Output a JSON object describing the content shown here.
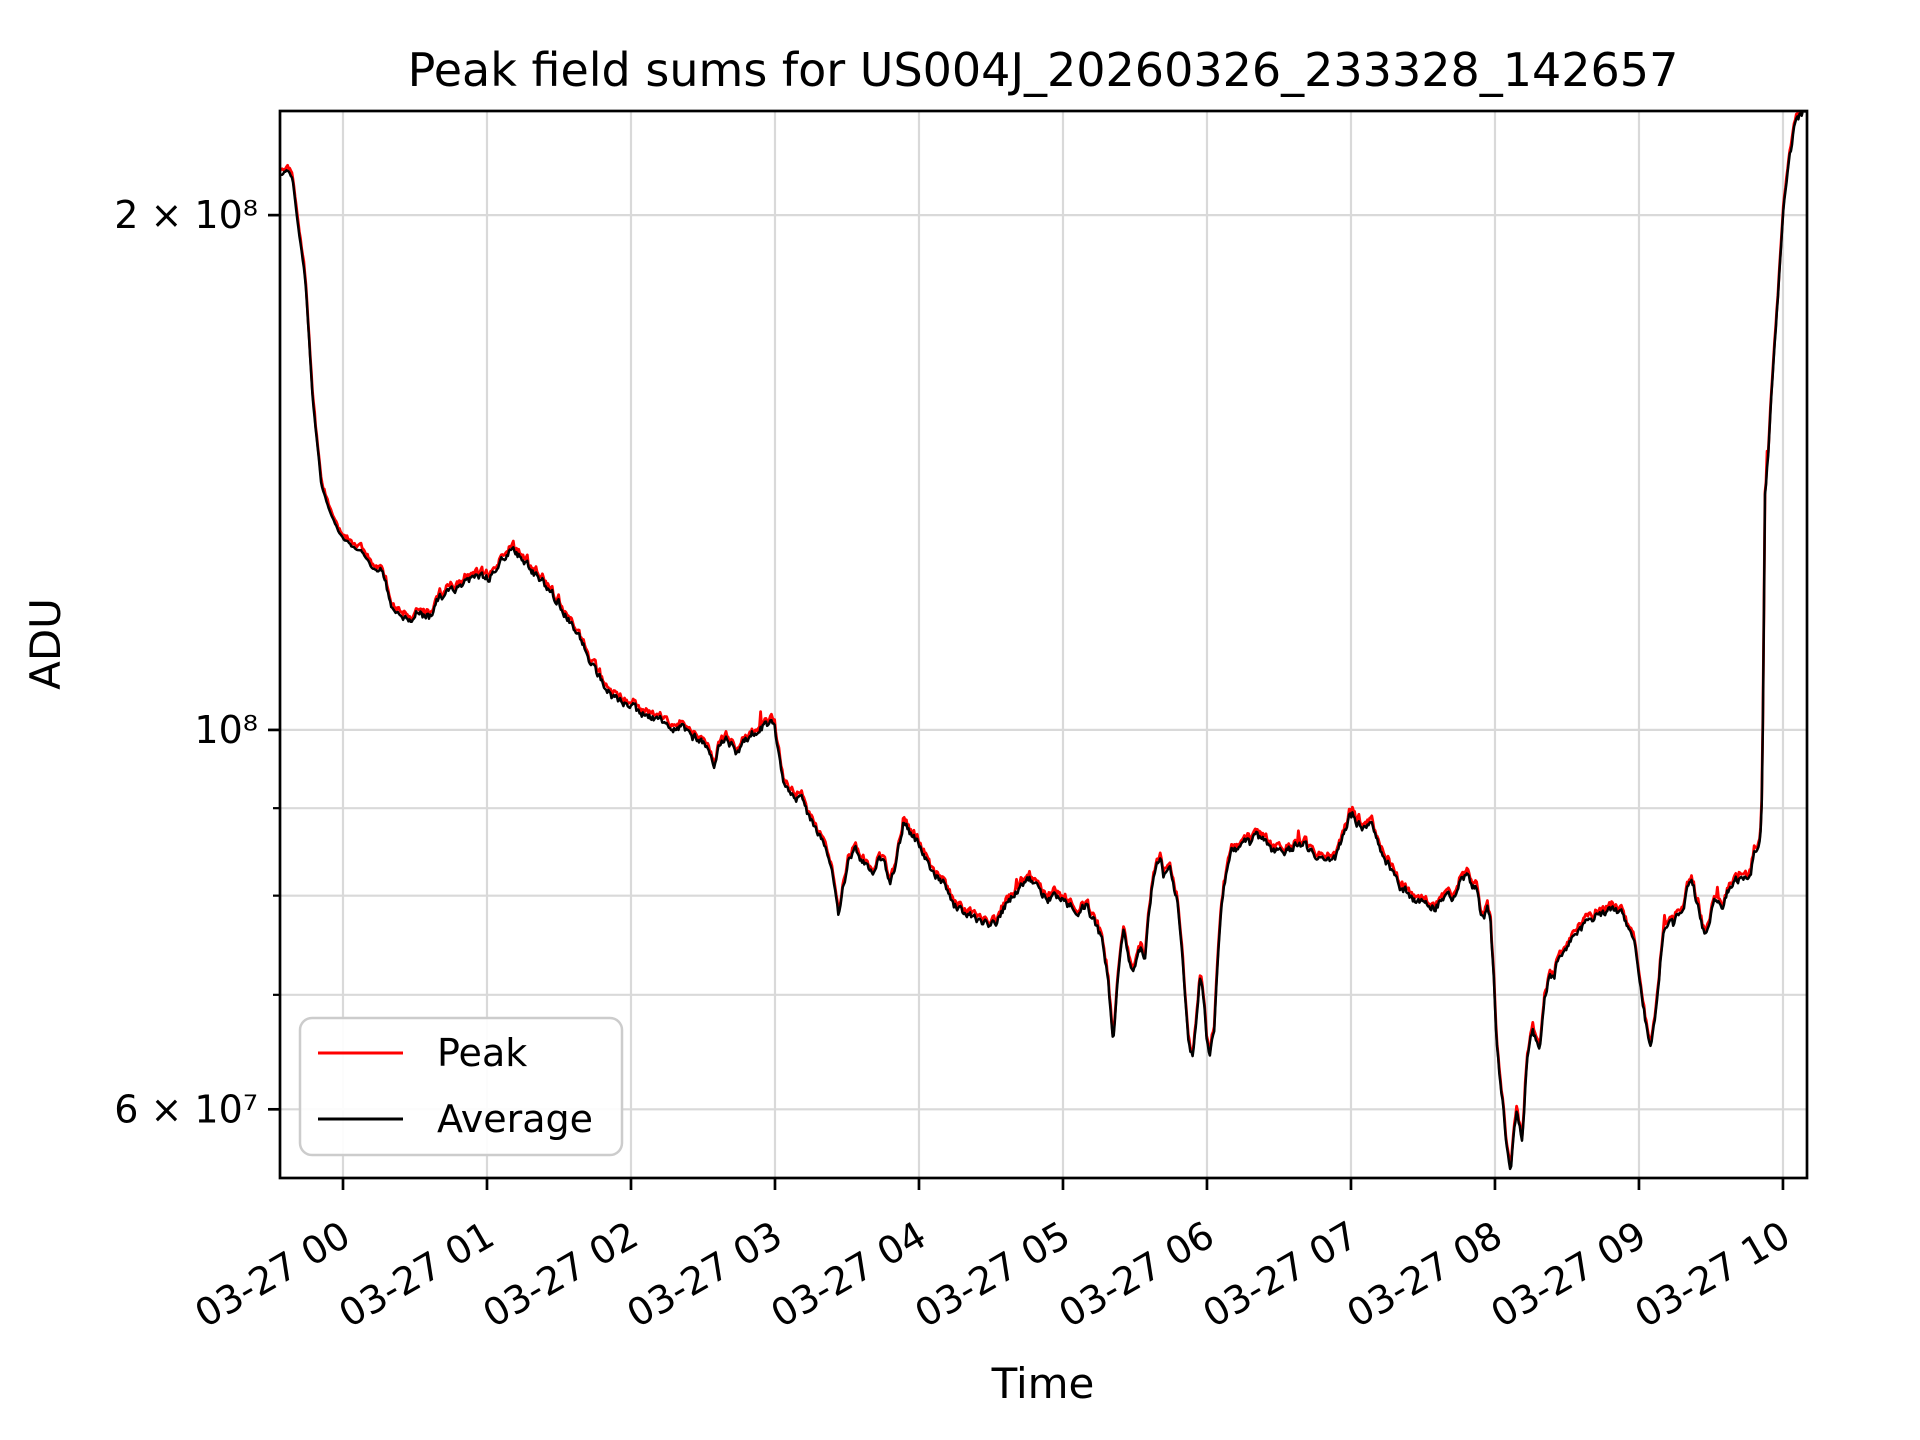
{
  "figure": {
    "title": "Peak field sums for US004J_20260326_233328_142657",
    "xlabel": "Time",
    "ylabel": "ADU",
    "background": "#ffffff"
  },
  "axes": {
    "xlim_hours": [
      -0.4375,
      10.167
    ],
    "ylim": [
      54700000,
      230100000
    ],
    "x_ticks": [
      {
        "hour": 0,
        "label": "03-27 00"
      },
      {
        "hour": 1,
        "label": "03-27 01"
      },
      {
        "hour": 2,
        "label": "03-27 02"
      },
      {
        "hour": 3,
        "label": "03-27 03"
      },
      {
        "hour": 4,
        "label": "03-27 04"
      },
      {
        "hour": 5,
        "label": "03-27 05"
      },
      {
        "hour": 6,
        "label": "03-27 06"
      },
      {
        "hour": 7,
        "label": "03-27 07"
      },
      {
        "hour": 8,
        "label": "03-27 08"
      },
      {
        "hour": 9,
        "label": "03-27 09"
      },
      {
        "hour": 10,
        "label": "03-27 10"
      }
    ],
    "y_ticks": [
      {
        "value": 200000000,
        "label": "2 × 10⁸"
      },
      {
        "value": 100000000,
        "label": "10⁸"
      },
      {
        "value": 60000000,
        "label": "6 × 10⁷"
      }
    ],
    "y_minor_ticks": [
      90000000,
      80000000,
      70000000
    ],
    "grid_color": "#d9d9d9",
    "spine_color": "#000000"
  },
  "legend": {
    "entries": [
      {
        "label": "Peak",
        "color": "#ff0000"
      },
      {
        "label": "Average",
        "color": "#000000"
      }
    ]
  },
  "chart_data": {
    "type": "line",
    "title": "Peak field sums for US004J_20260326_233328_142657",
    "xlabel": "Time",
    "ylabel": "ADU",
    "x_unit": "hours after 2026-03-27 00:00 (negative = before midnight)",
    "value_unit": "millions of ADU",
    "y_scale": "log",
    "xlim": [
      -0.4375,
      10.167
    ],
    "ylim_millions": [
      54.7,
      230.1
    ],
    "grid": true,
    "legend_position": "lower left",
    "series": [
      {
        "name": "Peak",
        "color": "#ff0000",
        "note": "noisy upper envelope, approx 0.3-1.5% above Average"
      },
      {
        "name": "Average",
        "color": "#000000",
        "note": "waypoints below; both lines nearly overlap"
      }
    ],
    "average_points": [
      [
        -0.44,
        211
      ],
      [
        -0.38,
        212.5
      ],
      [
        -0.35,
        210
      ],
      [
        -0.32,
        199.7
      ],
      [
        -0.26,
        183
      ],
      [
        -0.21,
        156
      ],
      [
        -0.15,
        139
      ],
      [
        -0.09,
        134
      ],
      [
        -0.02,
        130
      ],
      [
        0.06,
        128
      ],
      [
        0.14,
        127
      ],
      [
        0.2,
        124.4
      ],
      [
        0.28,
        123.5
      ],
      [
        0.34,
        117.5
      ],
      [
        0.4,
        116
      ],
      [
        0.47,
        116
      ],
      [
        0.51,
        117.5
      ],
      [
        0.55,
        116.6
      ],
      [
        0.6,
        116.5
      ],
      [
        0.67,
        119.8
      ],
      [
        0.73,
        120.2
      ],
      [
        0.79,
        121.2
      ],
      [
        0.85,
        122
      ],
      [
        0.9,
        122.4
      ],
      [
        0.97,
        123
      ],
      [
        1.02,
        122.6
      ],
      [
        1.09,
        126
      ],
      [
        1.17,
        127.2
      ],
      [
        1.23,
        126.4
      ],
      [
        1.31,
        124
      ],
      [
        1.4,
        121.6
      ],
      [
        1.49,
        119
      ],
      [
        1.56,
        116.3
      ],
      [
        1.63,
        114
      ],
      [
        1.72,
        109.6
      ],
      [
        1.79,
        107
      ],
      [
        1.87,
        104.4
      ],
      [
        1.92,
        104
      ],
      [
        2.01,
        103
      ],
      [
        2.1,
        102
      ],
      [
        2.19,
        101.4
      ],
      [
        2.26,
        101
      ],
      [
        2.29,
        99.6
      ],
      [
        2.34,
        100.5
      ],
      [
        2.41,
        99.2
      ],
      [
        2.48,
        98.5
      ],
      [
        2.53,
        97.4
      ],
      [
        2.58,
        95.3
      ],
      [
        2.61,
        98.1
      ],
      [
        2.65,
        98.9
      ],
      [
        2.69,
        98
      ],
      [
        2.74,
        97
      ],
      [
        2.79,
        98.4
      ],
      [
        2.84,
        99.5
      ],
      [
        2.91,
        100.4
      ],
      [
        2.97,
        100.8
      ],
      [
        3.0,
        99.9
      ],
      [
        3.03,
        96
      ],
      [
        3.06,
        92.7
      ],
      [
        3.1,
        91.8
      ],
      [
        3.15,
        90.9
      ],
      [
        3.19,
        91.4
      ],
      [
        3.23,
        89.2
      ],
      [
        3.28,
        87.4
      ],
      [
        3.33,
        85.9
      ],
      [
        3.37,
        84.5
      ],
      [
        3.41,
        81.1
      ],
      [
        3.44,
        77.7
      ],
      [
        3.47,
        80.6
      ],
      [
        3.51,
        83.7
      ],
      [
        3.56,
        85.3
      ],
      [
        3.6,
        83.7
      ],
      [
        3.65,
        83.0
      ],
      [
        3.68,
        82.4
      ],
      [
        3.72,
        84.3
      ],
      [
        3.76,
        83.6
      ],
      [
        3.8,
        81.7
      ],
      [
        3.83,
        82.8
      ],
      [
        3.89,
        88.1
      ],
      [
        3.94,
        87.1
      ],
      [
        4.01,
        85.3
      ],
      [
        4.09,
        82.8
      ],
      [
        4.17,
        81.3
      ],
      [
        4.24,
        79.0
      ],
      [
        4.3,
        78.5
      ],
      [
        4.38,
        77.8
      ],
      [
        4.44,
        77.0
      ],
      [
        4.53,
        77.0
      ],
      [
        4.6,
        79.0
      ],
      [
        4.67,
        80.4
      ],
      [
        4.76,
        81.9
      ],
      [
        4.83,
        80.6
      ],
      [
        4.9,
        79.6
      ],
      [
        4.97,
        79.9
      ],
      [
        5.03,
        79.1
      ],
      [
        5.1,
        78.3
      ],
      [
        5.16,
        79.0
      ],
      [
        5.22,
        77.1
      ],
      [
        5.27,
        75.4
      ],
      [
        5.31,
        71.9
      ],
      [
        5.35,
        65.6
      ],
      [
        5.38,
        71.9
      ],
      [
        5.42,
        76.5
      ],
      [
        5.46,
        73.4
      ],
      [
        5.49,
        71.9
      ],
      [
        5.54,
        74.8
      ],
      [
        5.57,
        73.8
      ],
      [
        5.61,
        79.9
      ],
      [
        5.65,
        83.9
      ],
      [
        5.68,
        84.4
      ],
      [
        5.7,
        82.0
      ],
      [
        5.74,
        83.2
      ],
      [
        5.79,
        79.8
      ],
      [
        5.83,
        73.8
      ],
      [
        5.87,
        65.6
      ],
      [
        5.9,
        64.3
      ],
      [
        5.92,
        66.8
      ],
      [
        5.95,
        71.7
      ],
      [
        5.97,
        70.9
      ],
      [
        6.0,
        65.9
      ],
      [
        6.02,
        64.4
      ],
      [
        6.05,
        66.8
      ],
      [
        6.08,
        74.8
      ],
      [
        6.1,
        79.2
      ],
      [
        6.14,
        83.0
      ],
      [
        6.17,
        85.1
      ],
      [
        6.21,
        85.2
      ],
      [
        6.25,
        86.0
      ],
      [
        6.3,
        85.8
      ],
      [
        6.35,
        86.8
      ],
      [
        6.39,
        86.2
      ],
      [
        6.44,
        85.1
      ],
      [
        6.49,
        84.8
      ],
      [
        6.53,
        84.6
      ],
      [
        6.58,
        85.2
      ],
      [
        6.62,
        85.7
      ],
      [
        6.67,
        85.7
      ],
      [
        6.72,
        85.1
      ],
      [
        6.76,
        84.3
      ],
      [
        6.81,
        84.3
      ],
      [
        6.85,
        83.6
      ],
      [
        6.9,
        84.3
      ],
      [
        6.94,
        86.6
      ],
      [
        6.99,
        88.9
      ],
      [
        7.01,
        89.2
      ],
      [
        7.04,
        88.2
      ],
      [
        7.08,
        87.6
      ],
      [
        7.12,
        88.2
      ],
      [
        7.15,
        87.9
      ],
      [
        7.2,
        85.4
      ],
      [
        7.25,
        83.7
      ],
      [
        7.29,
        82.5
      ],
      [
        7.34,
        81.0
      ],
      [
        7.39,
        80.3
      ],
      [
        7.43,
        79.7
      ],
      [
        7.48,
        79.4
      ],
      [
        7.53,
        78.9
      ],
      [
        7.58,
        78.7
      ],
      [
        7.64,
        79.7
      ],
      [
        7.69,
        80.0
      ],
      [
        7.72,
        79.6
      ],
      [
        7.76,
        81.6
      ],
      [
        7.8,
        82.2
      ],
      [
        7.83,
        81.3
      ],
      [
        7.87,
        80.7
      ],
      [
        7.9,
        78.3
      ],
      [
        7.93,
        78.0
      ],
      [
        7.95,
        78.7
      ],
      [
        7.97,
        77.0
      ],
      [
        7.99,
        71.9
      ],
      [
        8.01,
        66.0
      ],
      [
        8.03,
        63.1
      ],
      [
        8.06,
        60.0
      ],
      [
        8.08,
        57.4
      ],
      [
        8.1,
        55.4
      ],
      [
        8.11,
        55.1
      ],
      [
        8.13,
        58.0
      ],
      [
        8.15,
        59.7
      ],
      [
        8.17,
        58.8
      ],
      [
        8.19,
        57.4
      ],
      [
        8.2,
        59.1
      ],
      [
        8.22,
        63.6
      ],
      [
        8.24,
        65.3
      ],
      [
        8.26,
        66.8
      ],
      [
        8.29,
        65.7
      ],
      [
        8.31,
        64.9
      ],
      [
        8.33,
        67.7
      ],
      [
        8.35,
        69.9
      ],
      [
        8.38,
        72.1
      ],
      [
        8.41,
        71.6
      ],
      [
        8.44,
        73.8
      ],
      [
        8.48,
        74.2
      ],
      [
        8.51,
        74.9
      ],
      [
        8.55,
        75.7
      ],
      [
        8.59,
        76.4
      ],
      [
        8.62,
        76.9
      ],
      [
        8.66,
        77.4
      ],
      [
        8.7,
        78.0
      ],
      [
        8.74,
        77.9
      ],
      [
        8.78,
        78.5
      ],
      [
        8.83,
        78.2
      ],
      [
        8.87,
        78.3
      ],
      [
        8.91,
        77.4
      ],
      [
        8.94,
        76.1
      ],
      [
        8.98,
        74.2
      ],
      [
        9.01,
        71.1
      ],
      [
        9.04,
        68.0
      ],
      [
        9.07,
        66.0
      ],
      [
        9.08,
        65.6
      ],
      [
        9.1,
        66.8
      ],
      [
        9.13,
        69.5
      ],
      [
        9.15,
        73.3
      ],
      [
        9.17,
        75.7
      ],
      [
        9.19,
        76.6
      ],
      [
        9.21,
        77.1
      ],
      [
        9.24,
        76.8
      ],
      [
        9.26,
        77.5
      ],
      [
        9.29,
        78.3
      ],
      [
        9.32,
        79.6
      ],
      [
        9.34,
        81.0
      ],
      [
        9.36,
        81.7
      ],
      [
        9.38,
        80.8
      ],
      [
        9.4,
        79.3
      ],
      [
        9.43,
        77.7
      ],
      [
        9.45,
        76.1
      ],
      [
        9.47,
        76.5
      ],
      [
        9.49,
        77.4
      ],
      [
        9.51,
        78.8
      ],
      [
        9.53,
        79.6
      ],
      [
        9.55,
        79.2
      ],
      [
        9.57,
        78.5
      ],
      [
        9.59,
        79.2
      ],
      [
        9.61,
        80.2
      ],
      [
        9.63,
        80.7
      ],
      [
        9.65,
        81.0
      ],
      [
        9.67,
        81.5
      ],
      [
        9.7,
        82.0
      ],
      [
        9.72,
        82.1
      ],
      [
        9.74,
        81.7
      ],
      [
        9.76,
        81.9
      ],
      [
        9.78,
        82.6
      ],
      [
        9.8,
        85.1
      ],
      [
        9.82,
        85.5
      ],
      [
        9.83,
        86.0
      ],
      [
        9.85,
        87.8
      ],
      [
        9.86,
        100
      ],
      [
        9.875,
        136.8
      ],
      [
        9.9,
        145.8
      ],
      [
        9.92,
        157
      ],
      [
        9.95,
        171
      ],
      [
        9.98,
        187
      ],
      [
        10.01,
        204
      ],
      [
        10.05,
        217
      ],
      [
        10.08,
        225
      ],
      [
        10.12,
        229
      ],
      [
        10.17,
        230.6
      ]
    ]
  }
}
